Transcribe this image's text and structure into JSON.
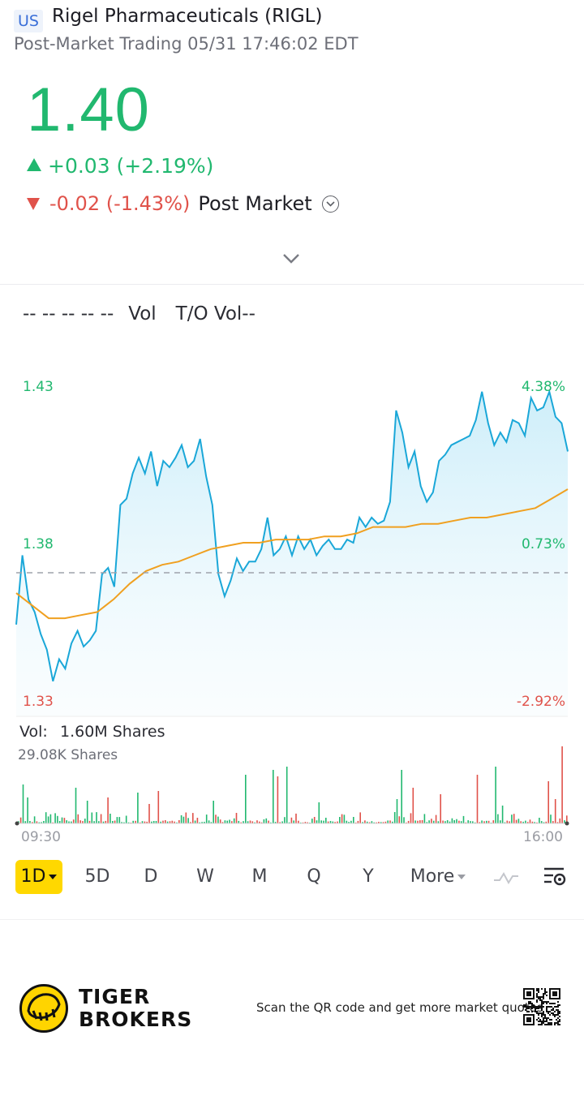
{
  "header": {
    "market": "US",
    "name": "Rigel Pharmaceuticals (RIGL)",
    "subtitle": "Post-Market Trading 05/31 17:46:02 EDT",
    "price": "1.40",
    "change": "+0.03 (+2.19%)",
    "post_change": "-0.02 (-1.43%)",
    "post_label": "Post Market"
  },
  "indicators": [
    "-- -- -- -- --",
    "Vol",
    "T/O Vol--"
  ],
  "chart": {
    "left_axis": {
      "top": "1.43",
      "mid": "1.38",
      "bottom": "1.33"
    },
    "right_axis": {
      "top": "4.38%",
      "mid": "0.73%",
      "bottom": "-2.92%"
    },
    "vol_label": "Vol:",
    "vol_value": "1.60M Shares",
    "vol_max": "29.08K Shares",
    "time_start": "09:30",
    "time_end": "16:00",
    "prev_close": 1.37
  },
  "chart_data": {
    "type": "line",
    "x_range": [
      "09:30",
      "16:00"
    ],
    "ylim": [
      1.33,
      1.43
    ],
    "series": [
      {
        "values": [
          1.354,
          1.376,
          1.362,
          1.358,
          1.351,
          1.346,
          1.336,
          1.343,
          1.34,
          1.348,
          1.352,
          1.347,
          1.349,
          1.352,
          1.37,
          1.372,
          1.366,
          1.392,
          1.394,
          1.402,
          1.407,
          1.402,
          1.409,
          1.398,
          1.406,
          1.404,
          1.407,
          1.411,
          1.404,
          1.406,
          1.413,
          1.401,
          1.392,
          1.37,
          1.363,
          1.368,
          1.375,
          1.371,
          1.374,
          1.374,
          1.378,
          1.388,
          1.376,
          1.378,
          1.382,
          1.376,
          1.382,
          1.378,
          1.381,
          1.376,
          1.379,
          1.381,
          1.378,
          1.378,
          1.381,
          1.38,
          1.388,
          1.385,
          1.388,
          1.386,
          1.387,
          1.393,
          1.422,
          1.415,
          1.404,
          1.409,
          1.398,
          1.393,
          1.396,
          1.406,
          1.408,
          1.411,
          1.412,
          1.413,
          1.414,
          1.419,
          1.428,
          1.418,
          1.411,
          1.415,
          1.412,
          1.419,
          1.418,
          1.414,
          1.426,
          1.422,
          1.423,
          1.428,
          1.42,
          1.418,
          1.409
        ]
      },
      {
        "values": [
          1.364,
          1.36,
          1.356,
          1.356,
          1.357,
          1.358,
          1.362,
          1.367,
          1.371,
          1.373,
          1.374,
          1.376,
          1.378,
          1.379,
          1.38,
          1.38,
          1.381,
          1.381,
          1.381,
          1.382,
          1.382,
          1.383,
          1.385,
          1.385,
          1.385,
          1.386,
          1.386,
          1.387,
          1.388,
          1.388,
          1.389,
          1.39,
          1.391,
          1.394,
          1.397
        ]
      }
    ],
    "volume_max": "29.08K Shares"
  },
  "timeframes": [
    "1D",
    "5D",
    "D",
    "W",
    "M",
    "Q",
    "Y",
    "More"
  ],
  "footer": {
    "brand_line1": "TIGER",
    "brand_line2": "BROKERS",
    "scan_text": "Scan the QR code and get more market quotes"
  },
  "colors": {
    "up": "#21b86f",
    "down": "#e0524a",
    "line": "#1aa7d8",
    "avg": "#f0a020",
    "active": "#ffd800"
  }
}
